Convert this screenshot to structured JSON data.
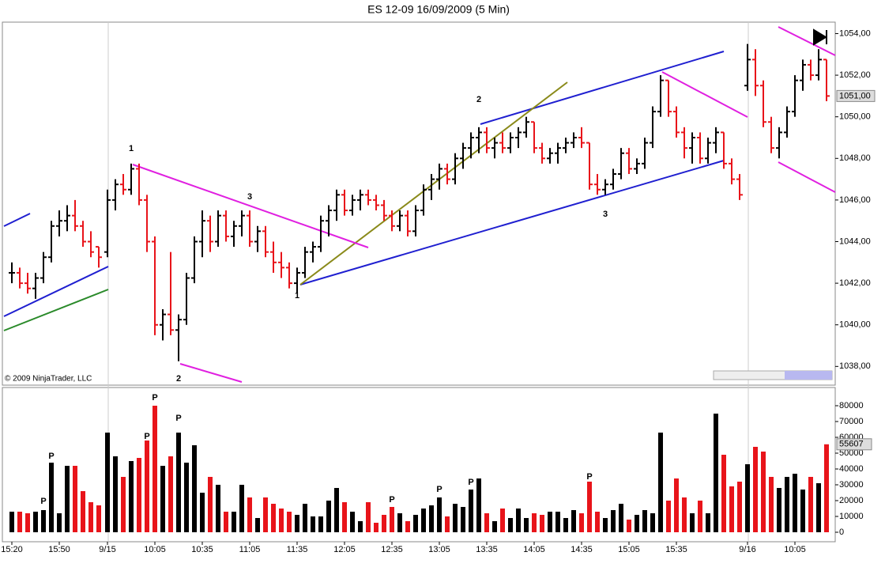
{
  "chart_data": {
    "type": "ohlc",
    "title": "ES 12-09  16/09/2009 (5 Min)",
    "copyright": "© 2009 NinjaTrader, LLC",
    "categories": [
      "15:20",
      null,
      null,
      null,
      null,
      null,
      "15:50",
      null,
      null,
      null,
      null,
      null,
      "9/15",
      null,
      null,
      null,
      null,
      null,
      "10:05",
      null,
      null,
      null,
      null,
      null,
      "10:35",
      null,
      null,
      null,
      null,
      null,
      "11:05",
      null,
      null,
      null,
      null,
      null,
      "11:35",
      null,
      null,
      null,
      null,
      null,
      "12:05",
      null,
      null,
      null,
      null,
      null,
      "12:35",
      null,
      null,
      null,
      null,
      null,
      "13:05",
      null,
      null,
      null,
      null,
      null,
      "13:35",
      null,
      null,
      null,
      null,
      null,
      "14:05",
      null,
      null,
      null,
      null,
      null,
      "14:35",
      null,
      null,
      null,
      null,
      null,
      "15:05",
      null,
      null,
      null,
      null,
      null,
      "15:35",
      null,
      null,
      null,
      null,
      null,
      null,
      null,
      null,
      "9/16",
      null,
      null,
      null,
      null,
      null,
      "10:05",
      null,
      null,
      null,
      null
    ],
    "ohlc": [
      [
        1042.5,
        1043,
        1042,
        1042.5
      ],
      [
        1042.5,
        1042.75,
        1041.75,
        1042
      ],
      [
        1042,
        1042.5,
        1041.5,
        1041.75
      ],
      [
        1041.75,
        1042.5,
        1041.25,
        1042.25
      ],
      [
        1042.25,
        1043.5,
        1042,
        1043.25
      ],
      [
        1043.25,
        1045,
        1043,
        1044.75
      ],
      [
        1044.75,
        1045.5,
        1044.25,
        1045
      ],
      [
        1045,
        1045.75,
        1044.5,
        1045.25
      ],
      [
        1045.25,
        1046,
        1044.5,
        1044.75
      ],
      [
        1044.75,
        1045,
        1043.75,
        1044
      ],
      [
        1044,
        1044.5,
        1043.25,
        1043.5
      ],
      [
        1043.75,
        1043.75,
        1042.75,
        1043.25
      ],
      [
        1043.5,
        1046.5,
        1043.25,
        1046
      ],
      [
        1046,
        1047,
        1045.5,
        1046.75
      ],
      [
        1046.75,
        1047.25,
        1046.25,
        1046.5
      ],
      [
        1046.5,
        1047.75,
        1046.25,
        1047.5
      ],
      [
        1047.5,
        1047.75,
        1045.75,
        1046
      ],
      [
        1046,
        1046.25,
        1043.5,
        1044
      ],
      [
        1044,
        1044.25,
        1039.5,
        1040
      ],
      [
        1040,
        1040.75,
        1039.25,
        1040.5
      ],
      [
        1040.5,
        1043.5,
        1039.5,
        1039.75
      ],
      [
        1039.75,
        1040.5,
        1038.25,
        1040.25
      ],
      [
        1040.25,
        1042.5,
        1040,
        1042.25
      ],
      [
        1042.25,
        1044.25,
        1042,
        1044
      ],
      [
        1044,
        1045.5,
        1043.25,
        1045
      ],
      [
        1045,
        1045.25,
        1043.5,
        1044
      ],
      [
        1044,
        1045.5,
        1043.75,
        1045.25
      ],
      [
        1045.25,
        1045.5,
        1044,
        1044.25
      ],
      [
        1044.25,
        1045,
        1043.75,
        1044.75
      ],
      [
        1044.75,
        1045.5,
        1044.25,
        1045.25
      ],
      [
        1045.25,
        1045.5,
        1043.75,
        1044
      ],
      [
        1044,
        1044.75,
        1043.5,
        1044.5
      ],
      [
        1044.5,
        1044.75,
        1043.25,
        1043.5
      ],
      [
        1043.5,
        1044,
        1042.5,
        1043
      ],
      [
        1043,
        1043.5,
        1042.25,
        1042.75
      ],
      [
        1042.75,
        1043,
        1041.75,
        1042
      ],
      [
        1042,
        1042.75,
        1041.5,
        1042.5
      ],
      [
        1042.5,
        1043.75,
        1042.25,
        1043.5
      ],
      [
        1043.5,
        1044,
        1043,
        1043.75
      ],
      [
        1043.75,
        1045.25,
        1043.5,
        1045
      ],
      [
        1045,
        1045.75,
        1044.25,
        1045.5
      ],
      [
        1045.5,
        1046.5,
        1045,
        1046.25
      ],
      [
        1046.25,
        1046.5,
        1045.25,
        1045.5
      ],
      [
        1045.5,
        1046.25,
        1045.25,
        1046
      ],
      [
        1046,
        1046.5,
        1045.5,
        1046.25
      ],
      [
        1046.25,
        1046.5,
        1045.75,
        1046
      ],
      [
        1046,
        1046.25,
        1045.5,
        1045.75
      ],
      [
        1045.75,
        1046,
        1045,
        1045.25
      ],
      [
        1045.25,
        1045.5,
        1044.5,
        1044.75
      ],
      [
        1044.75,
        1045.5,
        1044.5,
        1045.25
      ],
      [
        1045.25,
        1045.5,
        1044.25,
        1044.5
      ],
      [
        1044.5,
        1045.75,
        1044.25,
        1045.5
      ],
      [
        1045.5,
        1046.75,
        1045.25,
        1046.5
      ],
      [
        1046.5,
        1047.25,
        1046,
        1047
      ],
      [
        1047,
        1047.75,
        1046.5,
        1047.5
      ],
      [
        1047.5,
        1047.75,
        1046.75,
        1047
      ],
      [
        1047,
        1048.25,
        1046.75,
        1048
      ],
      [
        1048,
        1048.75,
        1047.5,
        1048.5
      ],
      [
        1048.5,
        1049.25,
        1048,
        1049
      ],
      [
        1049,
        1049.5,
        1048.25,
        1049.25
      ],
      [
        1049.25,
        1049.5,
        1048.25,
        1048.5
      ],
      [
        1048.5,
        1049,
        1048,
        1048.75
      ],
      [
        1048.75,
        1049.25,
        1048.25,
        1048.5
      ],
      [
        1048.5,
        1049.25,
        1048.25,
        1049
      ],
      [
        1049,
        1049.5,
        1048.5,
        1049.25
      ],
      [
        1049.25,
        1050,
        1049,
        1049.75
      ],
      [
        1049.75,
        1049.75,
        1048.25,
        1048.5
      ],
      [
        1048.5,
        1048.75,
        1047.75,
        1048
      ],
      [
        1048,
        1048.5,
        1047.75,
        1048.25
      ],
      [
        1048.25,
        1048.75,
        1047.75,
        1048.5
      ],
      [
        1048.5,
        1049,
        1048.25,
        1048.75
      ],
      [
        1048.75,
        1049.25,
        1048.5,
        1049
      ],
      [
        1049,
        1049.5,
        1048.5,
        1048.75
      ],
      [
        1048.75,
        1048.75,
        1046.5,
        1046.75
      ],
      [
        1046.75,
        1047.25,
        1046.25,
        1046.5
      ],
      [
        1046.5,
        1047,
        1046.25,
        1046.75
      ],
      [
        1046.75,
        1047.5,
        1046.5,
        1047.25
      ],
      [
        1047.25,
        1048.5,
        1047,
        1048.25
      ],
      [
        1048.25,
        1048.5,
        1047.25,
        1047.5
      ],
      [
        1047.5,
        1048,
        1047.25,
        1047.75
      ],
      [
        1047.75,
        1049,
        1047.5,
        1048.75
      ],
      [
        1048.75,
        1050.5,
        1048.5,
        1050.25
      ],
      [
        1050.25,
        1052,
        1050,
        1051.75
      ],
      [
        1051.75,
        1051.75,
        1050,
        1050.25
      ],
      [
        1050.25,
        1050.5,
        1049,
        1049.25
      ],
      [
        1049.25,
        1049.5,
        1048,
        1048.5
      ],
      [
        1048.5,
        1049.25,
        1047.75,
        1049
      ],
      [
        1049,
        1049.25,
        1047.75,
        1048
      ],
      [
        1048,
        1049,
        1047.75,
        1048.75
      ],
      [
        1048.75,
        1049.5,
        1048.25,
        1049.25
      ],
      [
        1049.25,
        1049.25,
        1047.5,
        1047.75
      ],
      [
        1047.75,
        1048,
        1046.75,
        1047
      ],
      [
        1047,
        1047.25,
        1046,
        1046.25
      ],
      [
        1051.5,
        1053.5,
        1051.25,
        1052.75
      ],
      [
        1052.75,
        1053.25,
        1051,
        1051.5
      ],
      [
        1051.5,
        1051.75,
        1049.5,
        1049.75
      ],
      [
        1049.75,
        1050,
        1048.25,
        1048.5
      ],
      [
        1048.5,
        1049.5,
        1048,
        1049.25
      ],
      [
        1049.25,
        1050.5,
        1049,
        1050.25
      ],
      [
        1050.25,
        1052,
        1050,
        1051.75
      ],
      [
        1051.75,
        1052.75,
        1051.25,
        1052.5
      ],
      [
        1052.5,
        1052.75,
        1051.75,
        1052
      ],
      [
        1052,
        1053.25,
        1051.75,
        1052.75
      ],
      [
        1052.75,
        1052.75,
        1050.75,
        1051
      ]
    ],
    "volume": [
      13000,
      13000,
      12000,
      13000,
      14000,
      44000,
      12000,
      42000,
      42000,
      26000,
      19000,
      17000,
      63000,
      48000,
      35000,
      45000,
      47000,
      58000,
      80000,
      42000,
      48000,
      63000,
      44000,
      55000,
      25000,
      35000,
      30000,
      13000,
      13000,
      30000,
      22000,
      9000,
      22000,
      18000,
      15000,
      13000,
      11000,
      18000,
      10000,
      10000,
      20000,
      28000,
      19000,
      13000,
      7000,
      19000,
      6000,
      11000,
      16000,
      12000,
      7000,
      11000,
      15000,
      17000,
      22000,
      10000,
      18000,
      16000,
      27000,
      34000,
      12000,
      7000,
      15000,
      9000,
      15000,
      9000,
      12000,
      11000,
      13000,
      13000,
      9000,
      14000,
      12000,
      32000,
      13000,
      9000,
      14000,
      18000,
      8000,
      11000,
      14000,
      12000,
      63000,
      20000,
      34000,
      22000,
      12000,
      20000,
      12000,
      75000,
      49000,
      29000,
      32000,
      43000,
      54000,
      51000,
      35000,
      28000,
      35000,
      37000,
      27000,
      35000,
      31000,
      55607
    ],
    "up_color": "#000000",
    "down_color": "#e8141a",
    "ylim": [
      1037.1,
      1054.55
    ],
    "yticks": [
      {
        "value": 1038,
        "label": "1038,00"
      },
      {
        "value": 1040,
        "label": "1040,00"
      },
      {
        "value": 1042,
        "label": "1042,00"
      },
      {
        "value": 1044,
        "label": "1044,00"
      },
      {
        "value": 1046,
        "label": "1046,00"
      },
      {
        "value": 1048,
        "label": "1048,00"
      },
      {
        "value": 1050,
        "label": "1050,00"
      },
      {
        "value": 1052,
        "label": "1052,00"
      },
      {
        "value": 1054,
        "label": "1054,00"
      }
    ],
    "last_price": {
      "value": 1051,
      "label": "1051,00"
    },
    "y2lim": [
      -6000,
      91500
    ],
    "y2ticks": [
      0,
      10000,
      20000,
      30000,
      40000,
      50000,
      60000,
      70000,
      80000
    ],
    "annotations": [
      "1",
      "2",
      "3",
      "1",
      "2",
      "3",
      "P",
      "P",
      "P",
      "P",
      "P",
      "P",
      "P",
      "P",
      "P"
    ]
  }
}
